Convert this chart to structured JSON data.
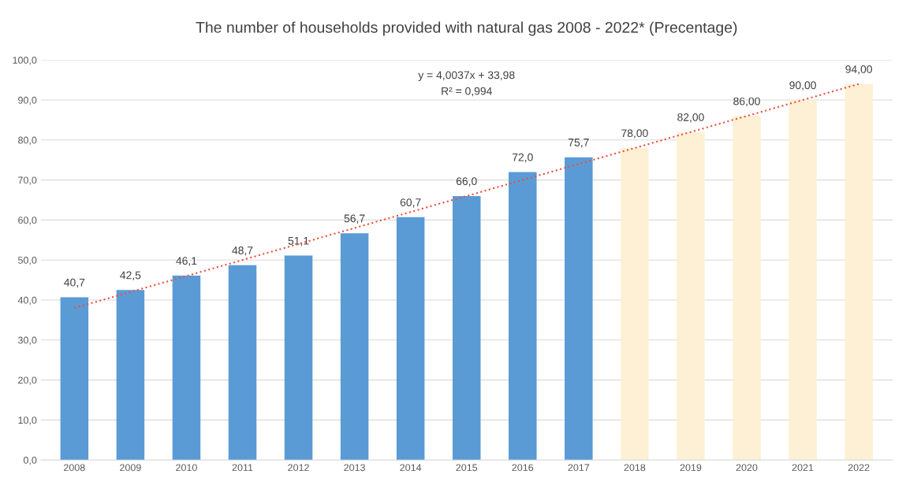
{
  "chart_data": {
    "type": "bar",
    "title": "The number of households provided with natural gas 2008 - 2022* (Precentage)",
    "categories": [
      "2008",
      "2009",
      "2010",
      "2011",
      "2012",
      "2013",
      "2014",
      "2015",
      "2016",
      "2017",
      "2018",
      "2019",
      "2020",
      "2021",
      "2022"
    ],
    "series": [
      {
        "colors": [
          "#5b9bd5",
          "#5b9bd5",
          "#5b9bd5",
          "#5b9bd5",
          "#5b9bd5",
          "#5b9bd5",
          "#5b9bd5",
          "#5b9bd5",
          "#5b9bd5",
          "#5b9bd5",
          "#fdf0d5",
          "#fdf0d5",
          "#fdf0d5",
          "#fdf0d5",
          "#fdf0d5"
        ],
        "values": [
          40.7,
          42.5,
          46.1,
          48.7,
          51.1,
          56.7,
          60.7,
          66.0,
          72.0,
          75.7,
          78,
          82,
          86,
          90,
          94
        ],
        "value_labels": [
          "40,7",
          "42,5",
          "46,1",
          "48,7",
          "51,1",
          "56,7",
          "60,7",
          "66,0",
          "72,0",
          "75,7",
          "78,00",
          "82,00",
          "86,00",
          "90,00",
          "94,00"
        ]
      },
      {
        "type": "line",
        "color": "#e8503a",
        "line_style": "dotted",
        "values": [
          38,
          42,
          46,
          50,
          54,
          58,
          62,
          66,
          70,
          74,
          78,
          82,
          86,
          90,
          94
        ]
      }
    ],
    "annotations": [
      "y = 4,0037x + 33,98",
      "R² = 0,994"
    ],
    "ylim": [
      0,
      100
    ],
    "yticks": [
      {
        "value": 0,
        "label": "0,0"
      },
      {
        "value": 10,
        "label": "10,0"
      },
      {
        "value": 20,
        "label": "20,0"
      },
      {
        "value": 30,
        "label": "30,0"
      },
      {
        "value": 40,
        "label": "40,0"
      },
      {
        "value": 50,
        "label": "50,0"
      },
      {
        "value": 60,
        "label": "60,0"
      },
      {
        "value": 70,
        "label": "70,0"
      },
      {
        "value": 80,
        "label": "80,0"
      },
      {
        "value": 90,
        "label": "90,0"
      },
      {
        "value": 100,
        "label": "100,0"
      }
    ],
    "grid": "y"
  }
}
